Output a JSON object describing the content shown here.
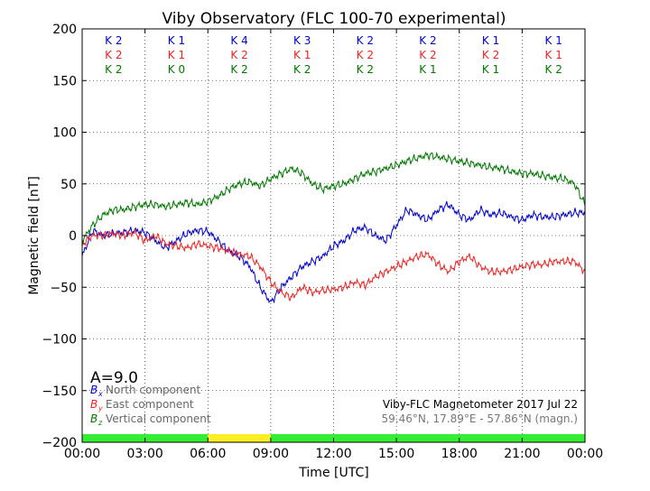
{
  "chart_data": {
    "type": "line",
    "title": "Viby Observatory (FLC 100-70 experimental)",
    "xlabel": "Time [UTC]",
    "ylabel": "Magnetic field [nT]",
    "xlim": [
      0,
      24
    ],
    "ylim": [
      -200,
      200
    ],
    "grid": true,
    "x_ticks": [
      "00:00",
      "03:00",
      "06:00",
      "09:00",
      "12:00",
      "15:00",
      "18:00",
      "21:00",
      "00:00"
    ],
    "y_ticks": [
      -200,
      -150,
      -100,
      -50,
      0,
      50,
      100,
      150,
      200
    ],
    "k_indices": {
      "B_x": [
        "K 2",
        "K 1",
        "K 4",
        "K 3",
        "K 2",
        "K 2",
        "K 1",
        "K 1"
      ],
      "B_y": [
        "K 2",
        "K 1",
        "K 2",
        "K 1",
        "K 2",
        "K 2",
        "K 2",
        "K 1"
      ],
      "B_z": [
        "K 2",
        "K 0",
        "K 2",
        "K 2",
        "K 2",
        "K 1",
        "K 1",
        "K 2"
      ]
    },
    "activity_bar": [
      {
        "from": 0,
        "to": 6,
        "level": "quiet",
        "color": "#33ee33"
      },
      {
        "from": 6,
        "to": 9,
        "level": "unsettled",
        "color": "#ffee22"
      },
      {
        "from": 9,
        "to": 24,
        "level": "quiet",
        "color": "#33ee33"
      }
    ],
    "a_index": "A=9.0",
    "legend_position": "bottom-left",
    "series": [
      {
        "name": "North component",
        "symbol": "B",
        "sub": "x",
        "color": "#0000cc",
        "x": [
          0,
          0.5,
          1,
          1.5,
          2,
          2.5,
          3,
          3.5,
          4,
          4.5,
          5,
          5.5,
          6,
          6.5,
          7,
          7.5,
          8,
          8.5,
          9,
          9.5,
          10,
          10.5,
          11,
          11.5,
          12,
          12.5,
          13,
          13.5,
          14,
          14.5,
          15,
          15.5,
          16,
          16.5,
          17,
          17.5,
          18,
          18.5,
          19,
          19.5,
          20,
          20.5,
          21,
          21.5,
          22,
          22.5,
          23,
          23.5,
          24
        ],
        "values": [
          -20,
          5,
          0,
          2,
          3,
          5,
          3,
          -5,
          -12,
          -5,
          2,
          5,
          4,
          -5,
          -15,
          -20,
          -30,
          -50,
          -65,
          -50,
          -40,
          -30,
          -25,
          -20,
          -10,
          -5,
          5,
          8,
          0,
          -5,
          10,
          25,
          20,
          15,
          25,
          30,
          20,
          15,
          25,
          20,
          22,
          18,
          15,
          20,
          18,
          18,
          20,
          22,
          22
        ]
      },
      {
        "name": "East component",
        "symbol": "B",
        "sub": "y",
        "color": "#ee2222",
        "x": [
          0,
          0.5,
          1,
          1.5,
          2,
          2.5,
          3,
          3.5,
          4,
          4.5,
          5,
          5.5,
          6,
          6.5,
          7,
          7.5,
          8,
          8.5,
          9,
          9.5,
          10,
          10.5,
          11,
          11.5,
          12,
          12.5,
          13,
          13.5,
          14,
          14.5,
          15,
          15.5,
          16,
          16.5,
          17,
          17.5,
          18,
          18.5,
          19,
          19.5,
          20,
          20.5,
          21,
          21.5,
          22,
          22.5,
          23,
          23.5,
          24
        ],
        "values": [
          -8,
          0,
          0,
          2,
          0,
          3,
          -5,
          0,
          -8,
          -10,
          -12,
          -8,
          -10,
          -12,
          -15,
          -18,
          -20,
          -30,
          -45,
          -55,
          -60,
          -50,
          -55,
          -53,
          -52,
          -50,
          -45,
          -48,
          -40,
          -35,
          -30,
          -25,
          -20,
          -18,
          -28,
          -35,
          -25,
          -20,
          -30,
          -35,
          -35,
          -33,
          -30,
          -28,
          -28,
          -25,
          -25,
          -25,
          -35
        ]
      },
      {
        "name": "Vertical component",
        "symbol": "B",
        "sub": "z",
        "color": "#007700",
        "x": [
          0,
          0.5,
          1,
          1.5,
          2,
          2.5,
          3,
          3.5,
          4,
          4.5,
          5,
          5.5,
          6,
          6.5,
          7,
          7.5,
          8,
          8.5,
          9,
          9.5,
          10,
          10.5,
          11,
          11.5,
          12,
          12.5,
          13,
          13.5,
          14,
          14.5,
          15,
          15.5,
          16,
          16.5,
          17,
          17.5,
          18,
          18.5,
          19,
          19.5,
          20,
          20.5,
          21,
          21.5,
          22,
          22.5,
          23,
          23.5,
          24
        ],
        "values": [
          -5,
          10,
          20,
          25,
          25,
          28,
          30,
          30,
          28,
          30,
          32,
          30,
          33,
          38,
          45,
          50,
          52,
          48,
          55,
          60,
          65,
          60,
          50,
          45,
          48,
          50,
          55,
          60,
          62,
          65,
          68,
          72,
          75,
          78,
          76,
          74,
          72,
          70,
          68,
          66,
          65,
          62,
          60,
          60,
          58,
          56,
          55,
          50,
          30
        ]
      }
    ]
  },
  "legend_items": [
    "North component",
    "East component",
    "Vertical component"
  ],
  "info": {
    "line1": "Viby-FLC Magnetometer 2017 Jul 22",
    "line2": "59.46°N, 17.89°E - 57.86°N (magn.)"
  }
}
